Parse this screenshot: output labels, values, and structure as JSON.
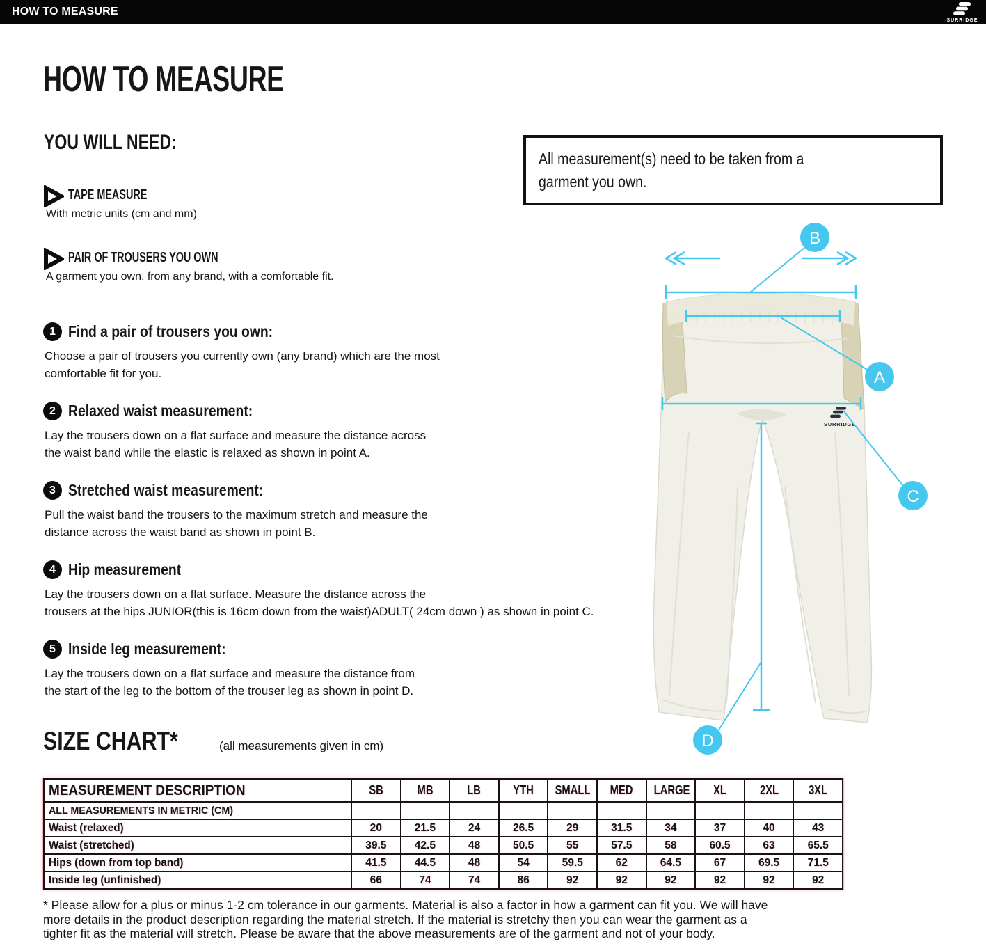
{
  "topbar": {
    "title": "HOW TO MEASURE",
    "brand": "SURRIDGE"
  },
  "page_title": "HOW TO MEASURE",
  "you_will_need": {
    "heading": "YOU WILL NEED:",
    "items": [
      {
        "label": "TAPE MEASURE",
        "desc": "With metric units (cm and mm)"
      },
      {
        "label": "PAIR OF TROUSERS YOU OWN",
        "desc": "A garment you own, from any brand, with a comfortable fit."
      }
    ]
  },
  "note_box": "All measurement(s) need to be taken from a\ngarment you own.",
  "steps": [
    {
      "num": "1",
      "title": "Find a pair of trousers you own:",
      "body": "Choose a pair of trousers you currently own (any brand) which are the most\ncomfortable fit for you."
    },
    {
      "num": "2",
      "title": "Relaxed waist measurement:",
      "body": "Lay the trousers down on a flat surface and measure the distance across\nthe waist band while the elastic is relaxed as shown in point A."
    },
    {
      "num": "3",
      "title": "Stretched waist measurement:",
      "body": "Pull the waist band the trousers to the maximum stretch and measure the\ndistance across the waist band as shown in point B."
    },
    {
      "num": "4",
      "title": "Hip measurement",
      "body": "Lay the trousers down on a flat surface. Measure the distance across the\ntrousers at the hips JUNIOR(this is 16cm down from the waist)ADULT( 24cm down ) as shown in point C."
    },
    {
      "num": "5",
      "title": "Inside leg measurement:",
      "body": "Lay the trousers down on a flat surface and measure the distance from\nthe start of the leg to the bottom of the trouser leg as shown in point D."
    }
  ],
  "diagram": {
    "points": {
      "a": "A",
      "b": "B",
      "c": "C",
      "d": "D"
    },
    "garment_brand": "SURRIDGE",
    "accent_color": "#45c7ef"
  },
  "size_chart": {
    "title": "SIZE CHART*",
    "subtitle": "(all measurements given in cm)",
    "columns": [
      "MEASUREMENT DESCRIPTION",
      "SB",
      "MB",
      "LB",
      "YTH",
      "SMALL",
      "MED",
      "LARGE",
      "XL",
      "2XL",
      "3XL"
    ],
    "metric_row_label": "ALL MEASUREMENTS IN METRIC (CM)",
    "rows": [
      {
        "label": "Waist (relaxed)",
        "values": [
          "20",
          "21.5",
          "24",
          "26.5",
          "29",
          "31.5",
          "34",
          "37",
          "40",
          "43"
        ]
      },
      {
        "label": "Waist (stretched)",
        "values": [
          "39.5",
          "42.5",
          "48",
          "50.5",
          "55",
          "57.5",
          "58",
          "60.5",
          "63",
          "65.5"
        ]
      },
      {
        "label": "Hips (down from top band)",
        "values": [
          "41.5",
          "44.5",
          "48",
          "54",
          "59.5",
          "62",
          "64.5",
          "67",
          "69.5",
          "71.5"
        ]
      },
      {
        "label": "Inside leg (unfinished)",
        "values": [
          "66",
          "74",
          "74",
          "86",
          "92",
          "92",
          "92",
          "92",
          "92",
          "92"
        ]
      }
    ]
  },
  "footnote": "* Please allow for a plus or minus 1-2 cm tolerance in our garments. Material is also a factor in how a garment can fit you. We will have\nmore details in the product description regarding the material stretch.  If the material is stretchy then you can wear the garment as a\ntighter fit as the material will stretch.  Please be aware that the above measurements are of the garment and not of your body."
}
